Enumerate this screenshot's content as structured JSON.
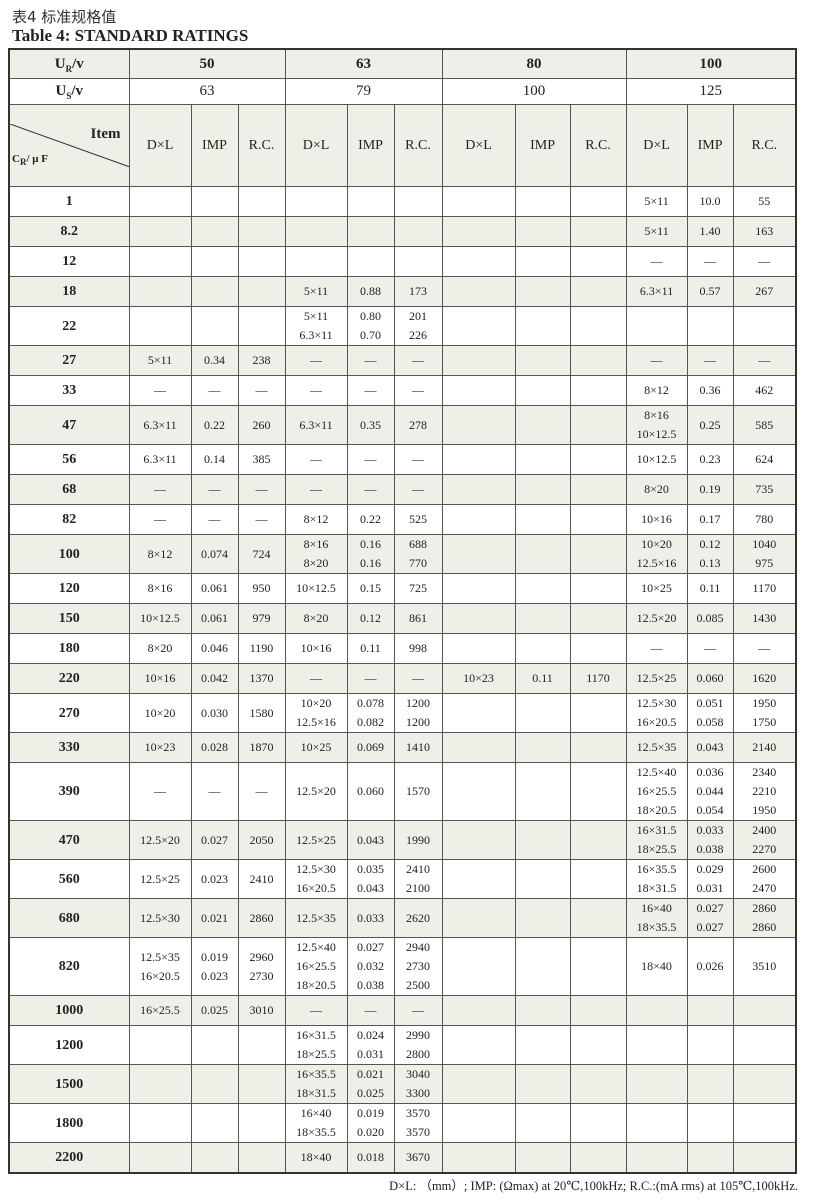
{
  "title_cn": "表4 标准规格值",
  "title_en": "Table 4:  STANDARD RATINGS",
  "header": {
    "ur_label": "U",
    "ur_sub": "R",
    "ur_unit": "/v",
    "us_label": "U",
    "us_sub": "S",
    "us_unit": "/v",
    "item": "Item",
    "cr_label": "C",
    "cr_sub": "R",
    "cr_unit": "/ μ F",
    "ur": [
      "50",
      "63",
      "80",
      "100"
    ],
    "us": [
      "63",
      "79",
      "100",
      "125"
    ],
    "cols": [
      "D×L",
      "IMP",
      "R.C."
    ]
  },
  "rows": [
    {
      "cap": "1",
      "v": [
        null,
        null,
        null,
        [
          "5×11",
          "10.0",
          "55"
        ]
      ]
    },
    {
      "cap": "8.2",
      "v": [
        null,
        null,
        null,
        [
          "5×11",
          "1.40",
          "163"
        ]
      ]
    },
    {
      "cap": "12",
      "v": [
        null,
        null,
        null,
        [
          "—",
          "—",
          "—"
        ]
      ]
    },
    {
      "cap": "18",
      "v": [
        null,
        [
          "5×11",
          "0.88",
          "173"
        ],
        null,
        [
          "6.3×11",
          "0.57",
          "267"
        ]
      ]
    },
    {
      "cap": "22",
      "v": [
        null,
        [
          "5×11\n6.3×11",
          "0.80\n0.70",
          "201\n226"
        ],
        null,
        null
      ]
    },
    {
      "cap": "27",
      "v": [
        [
          "5×11",
          "0.34",
          "238"
        ],
        [
          "—",
          "—",
          "—"
        ],
        null,
        [
          "—",
          "—",
          "—"
        ]
      ]
    },
    {
      "cap": "33",
      "v": [
        [
          "—",
          "—",
          "—"
        ],
        [
          "—",
          "—",
          "—"
        ],
        null,
        [
          "8×12",
          "0.36",
          "462"
        ]
      ]
    },
    {
      "cap": "47",
      "v": [
        [
          "6.3×11",
          "0.22",
          "260"
        ],
        [
          "6.3×11",
          "0.35",
          "278"
        ],
        null,
        [
          "8×16\n10×12.5",
          "0.25",
          "585"
        ]
      ]
    },
    {
      "cap": "56",
      "v": [
        [
          "6.3×11",
          "0.14",
          "385"
        ],
        [
          "—",
          "—",
          "—"
        ],
        null,
        [
          "10×12.5",
          "0.23",
          "624"
        ]
      ]
    },
    {
      "cap": "68",
      "v": [
        [
          "—",
          "—",
          "—"
        ],
        [
          "—",
          "—",
          "—"
        ],
        null,
        [
          "8×20",
          "0.19",
          "735"
        ]
      ]
    },
    {
      "cap": "82",
      "v": [
        [
          "—",
          "—",
          "—"
        ],
        [
          "8×12",
          "0.22",
          "525"
        ],
        null,
        [
          "10×16",
          "0.17",
          "780"
        ]
      ]
    },
    {
      "cap": "100",
      "v": [
        [
          "8×12",
          "0.074",
          "724"
        ],
        [
          "8×16\n8×20",
          "0.16\n0.16",
          "688\n770"
        ],
        null,
        [
          "10×20\n12.5×16",
          "0.12\n0.13",
          "1040\n975"
        ]
      ]
    },
    {
      "cap": "120",
      "v": [
        [
          "8×16",
          "0.061",
          "950"
        ],
        [
          "10×12.5",
          "0.15",
          "725"
        ],
        null,
        [
          "10×25",
          "0.11",
          "1170"
        ]
      ]
    },
    {
      "cap": "150",
      "v": [
        [
          "10×12.5",
          "0.061",
          "979"
        ],
        [
          "8×20",
          "0.12",
          "861"
        ],
        null,
        [
          "12.5×20",
          "0.085",
          "1430"
        ]
      ]
    },
    {
      "cap": "180",
      "v": [
        [
          "8×20",
          "0.046",
          "1190"
        ],
        [
          "10×16",
          "0.11",
          "998"
        ],
        null,
        [
          "—",
          "—",
          "—"
        ]
      ]
    },
    {
      "cap": "220",
      "v": [
        [
          "10×16",
          "0.042",
          "1370"
        ],
        [
          "—",
          "—",
          "—"
        ],
        [
          "10×23",
          "0.11",
          "1170"
        ],
        [
          "12.5×25",
          "0.060",
          "1620"
        ]
      ]
    },
    {
      "cap": "270",
      "v": [
        [
          "10×20",
          "0.030",
          "1580"
        ],
        [
          "10×20\n12.5×16",
          "0.078\n0.082",
          "1200\n1200"
        ],
        null,
        [
          "12.5×30\n16×20.5",
          "0.051\n0.058",
          "1950\n1750"
        ]
      ]
    },
    {
      "cap": "330",
      "v": [
        [
          "10×23",
          "0.028",
          "1870"
        ],
        [
          "10×25",
          "0.069",
          "1410"
        ],
        null,
        [
          "12.5×35",
          "0.043",
          "2140"
        ]
      ]
    },
    {
      "cap": "390",
      "v": [
        [
          "—",
          "—",
          "—"
        ],
        [
          "12.5×20",
          "0.060",
          "1570"
        ],
        null,
        [
          "12.5×40\n16×25.5\n18×20.5",
          "0.036\n0.044\n0.054",
          "2340\n2210\n1950"
        ]
      ]
    },
    {
      "cap": "470",
      "v": [
        [
          "12.5×20",
          "0.027",
          "2050"
        ],
        [
          "12.5×25",
          "0.043",
          "1990"
        ],
        null,
        [
          "16×31.5\n18×25.5",
          "0.033\n0.038",
          "2400\n2270"
        ]
      ]
    },
    {
      "cap": "560",
      "v": [
        [
          "12.5×25",
          "0.023",
          "2410"
        ],
        [
          "12.5×30\n16×20.5",
          "0.035\n0.043",
          "2410\n2100"
        ],
        null,
        [
          "16×35.5\n18×31.5",
          "0.029\n0.031",
          "2600\n2470"
        ]
      ]
    },
    {
      "cap": "680",
      "v": [
        [
          "12.5×30",
          "0.021",
          "2860"
        ],
        [
          "12.5×35",
          "0.033",
          "2620"
        ],
        null,
        [
          "16×40\n18×35.5",
          "0.027\n0.027",
          "2860\n2860"
        ]
      ]
    },
    {
      "cap": "820",
      "v": [
        [
          "12.5×35\n16×20.5",
          "0.019\n0.023",
          "2960\n2730"
        ],
        [
          "12.5×40\n16×25.5\n18×20.5",
          "0.027\n0.032\n0.038",
          "2940\n2730\n2500"
        ],
        null,
        [
          "18×40",
          "0.026",
          "3510"
        ]
      ]
    },
    {
      "cap": "1000",
      "v": [
        [
          "16×25.5",
          "0.025",
          "3010"
        ],
        [
          "—",
          "—",
          "—"
        ],
        null,
        null
      ]
    },
    {
      "cap": "1200",
      "v": [
        null,
        [
          "16×31.5\n18×25.5",
          "0.024\n0.031",
          "2990\n2800"
        ],
        null,
        null
      ]
    },
    {
      "cap": "1500",
      "v": [
        null,
        [
          "16×35.5\n18×31.5",
          "0.021\n0.025",
          "3040\n3300"
        ],
        null,
        null
      ]
    },
    {
      "cap": "1800",
      "v": [
        null,
        [
          "16×40\n18×35.5",
          "0.019\n0.020",
          "3570\n3570"
        ],
        null,
        null
      ]
    },
    {
      "cap": "2200",
      "v": [
        null,
        [
          "18×40",
          "0.018",
          "3670"
        ],
        null,
        null
      ]
    }
  ],
  "footnote": "D×L: （mm）; IMP: (Ωmax) at 20℃,100kHz; R.C.:(mA rms) at 105℃,100kHz.",
  "colors": {
    "shade": "#eef0e7",
    "border": "#333333"
  }
}
